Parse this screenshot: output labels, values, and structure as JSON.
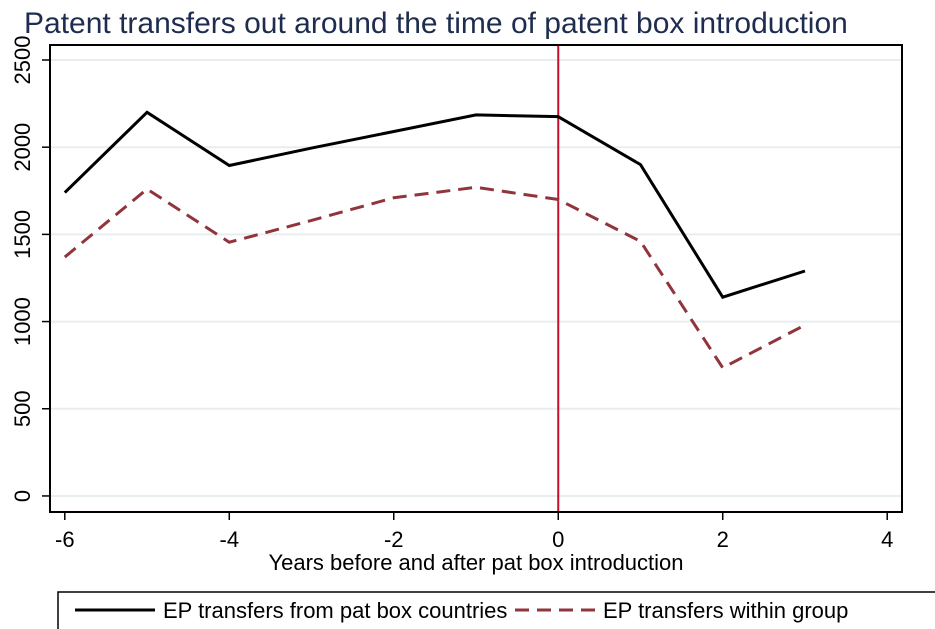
{
  "chart_data": {
    "type": "line",
    "title": "Patent transfers out around the time of patent box introduction",
    "x_label": "Years before and after pat box introduction",
    "x": [
      -6,
      -5,
      -4,
      -3,
      -2,
      -1,
      0,
      1,
      2,
      3
    ],
    "series": [
      {
        "name": "EP transfers from pat box countries",
        "color": "#000000",
        "dash": "solid",
        "values": [
          1740,
          2200,
          1895,
          1995,
          2090,
          2185,
          2175,
          1900,
          1140,
          1290
        ]
      },
      {
        "name": "EP transfers within group",
        "color": "#90353b",
        "dash": "dashed",
        "values": [
          1370,
          1760,
          1455,
          1580,
          1710,
          1770,
          1700,
          1460,
          735,
          980
        ]
      }
    ],
    "xlim": [
      -6.18,
      4.18
    ],
    "xticks": [
      -6,
      -4,
      -2,
      0,
      2,
      4
    ],
    "ylim": [
      -92,
      2586
    ],
    "yticks": [
      0,
      500,
      1000,
      1500,
      2000,
      2500
    ],
    "grid": true,
    "vline": 0,
    "vline_color": "#c8102e",
    "legend": "bottom"
  }
}
